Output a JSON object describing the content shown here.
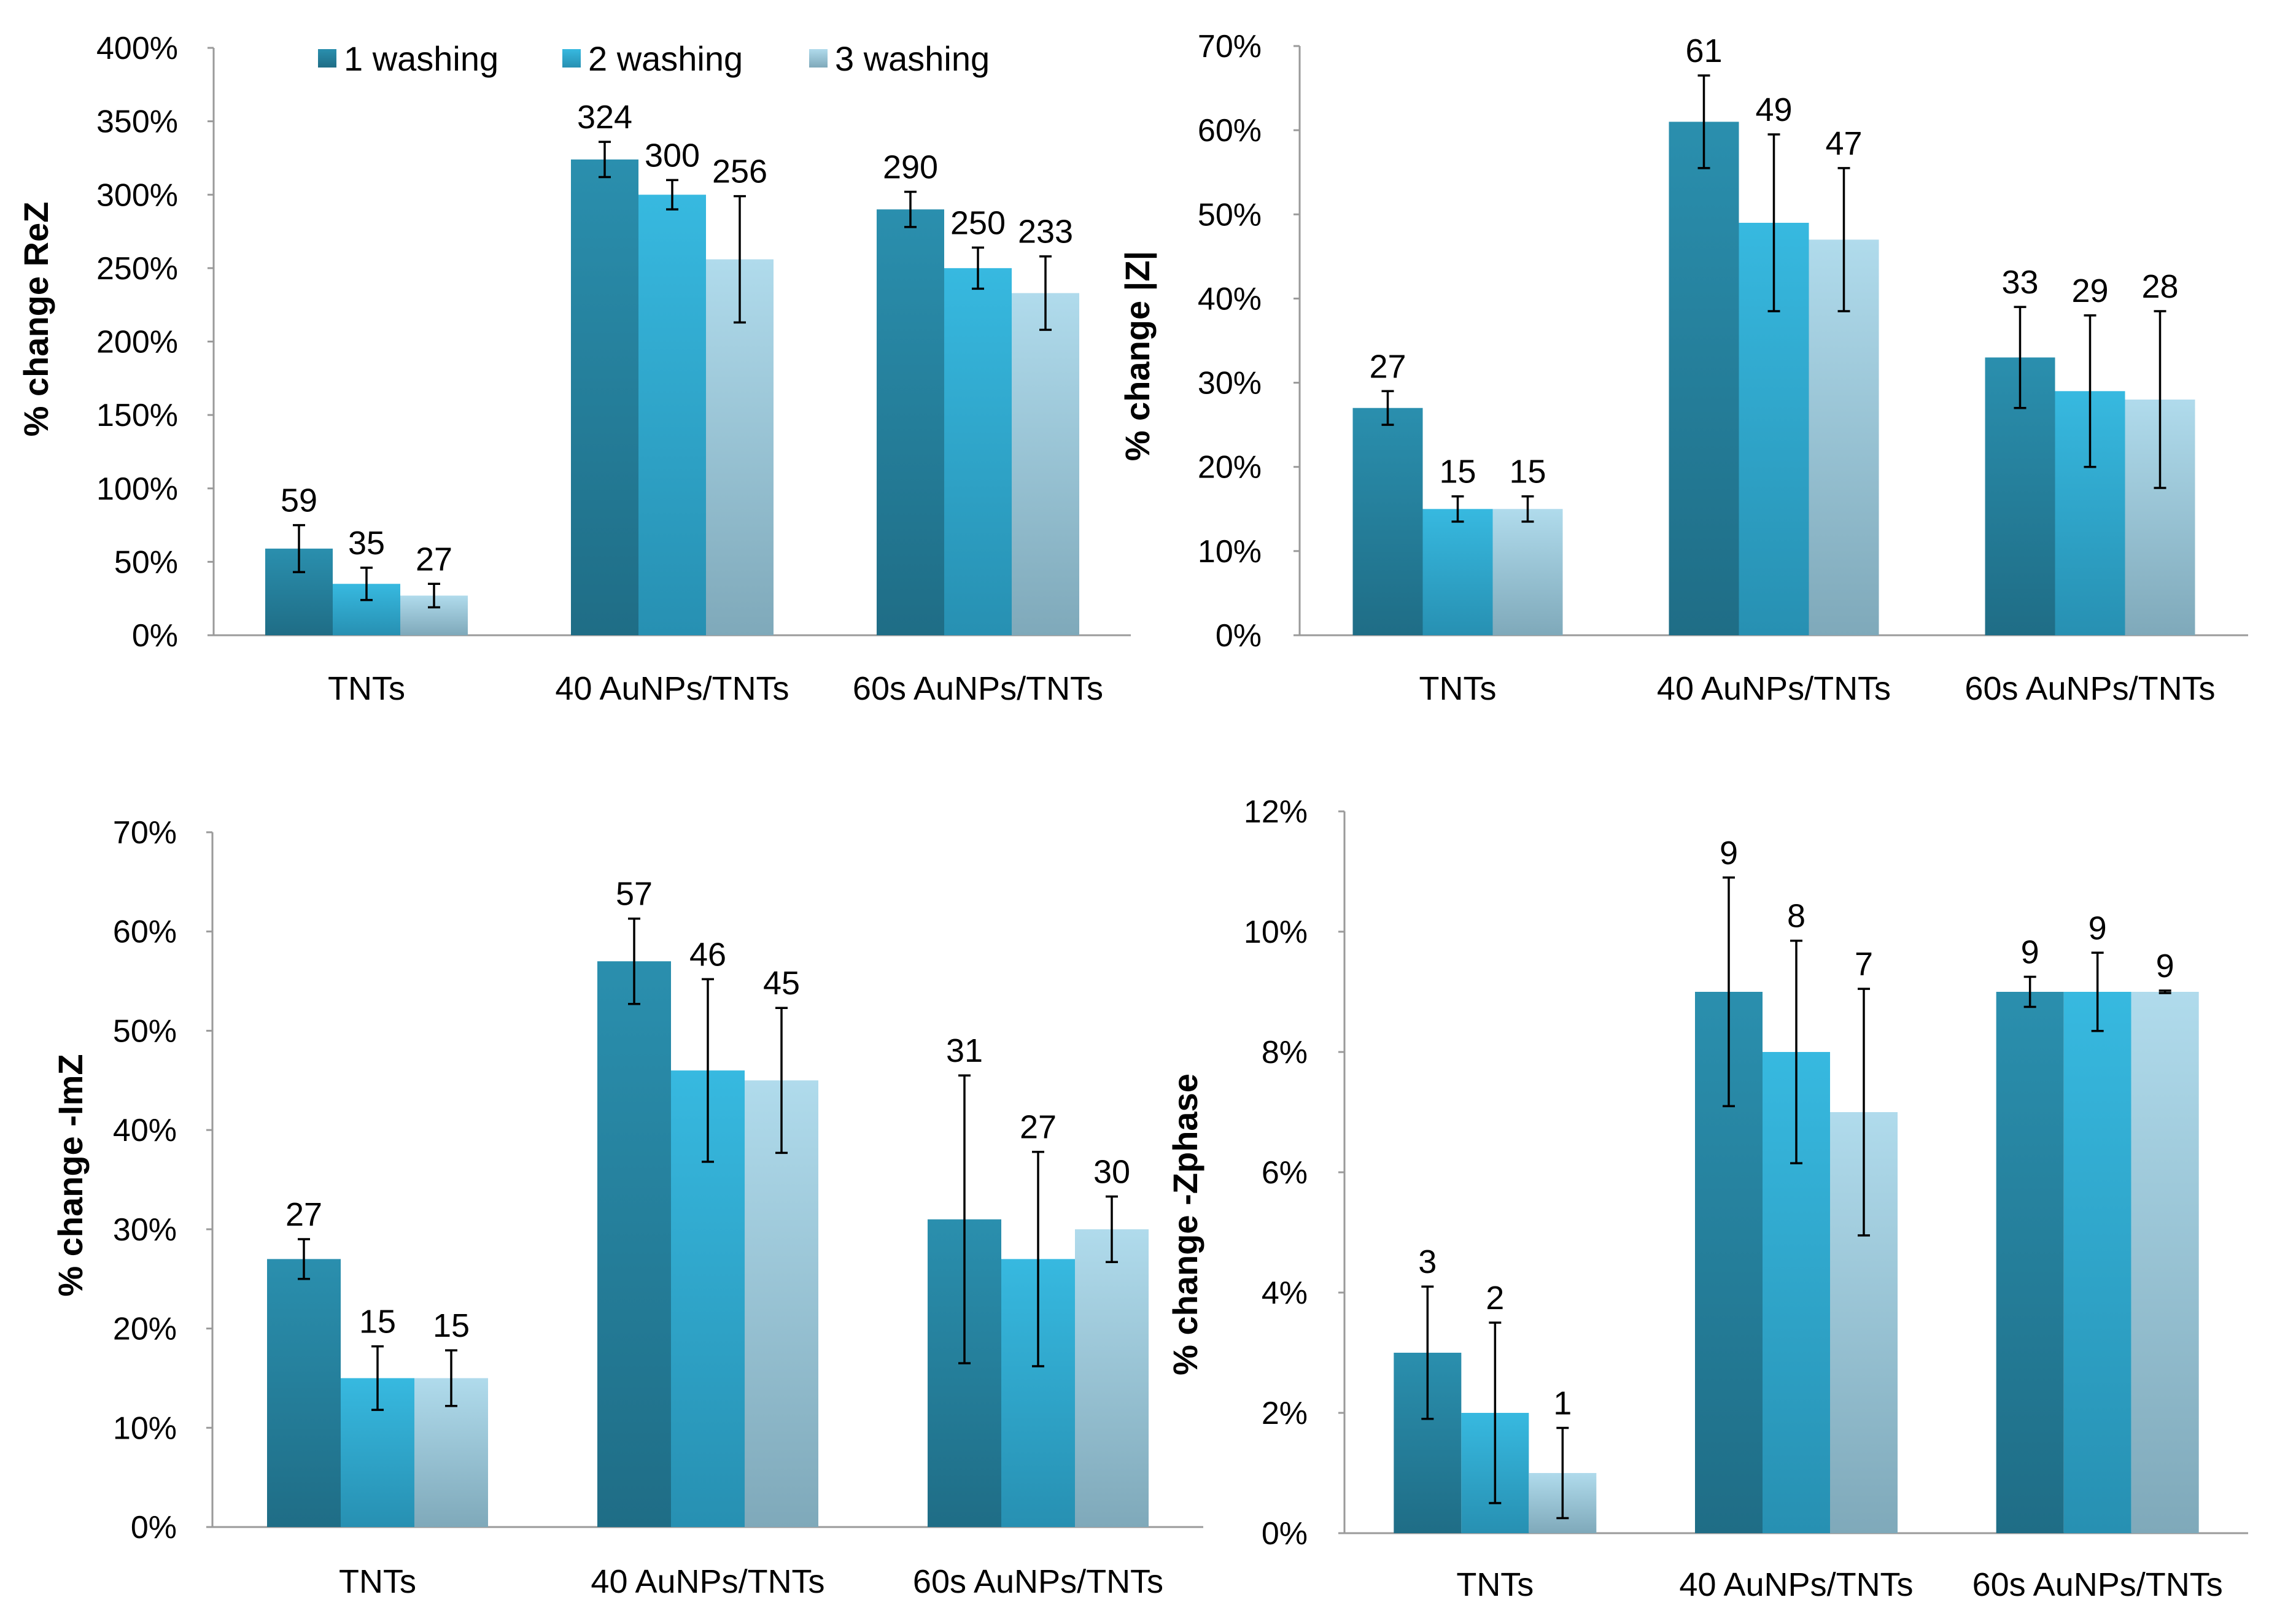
{
  "legend": {
    "items": [
      {
        "label": "1 washing",
        "color": "#2a8aa6"
      },
      {
        "label": "2 washing",
        "color": "#31b4dc"
      },
      {
        "label": "3 washing",
        "color": "#a5d3e6"
      }
    ]
  },
  "chart_data": [
    {
      "type": "bar",
      "title": "",
      "ylabel": "% change ReZ",
      "xlabel": "",
      "ylim": [
        0,
        400
      ],
      "yticks": [
        0,
        50,
        100,
        150,
        200,
        250,
        300,
        350,
        400
      ],
      "ytick_labels": [
        "0%",
        "50%",
        "100%",
        "150%",
        "200%",
        "250%",
        "300%",
        "350%",
        "400%"
      ],
      "categories": [
        "TNTs",
        "40 AuNPs/TNTs",
        "60s AuNPs/TNTs"
      ],
      "series": [
        {
          "name": "1 washing",
          "values": [
            59,
            324,
            290
          ],
          "errors": [
            16,
            12,
            12
          ],
          "labels": [
            "59",
            "324",
            "290"
          ]
        },
        {
          "name": "2 washing",
          "values": [
            35,
            300,
            250
          ],
          "errors": [
            11,
            10,
            14
          ],
          "labels": [
            "35",
            "300",
            "250"
          ]
        },
        {
          "name": "3 washing",
          "values": [
            27,
            256,
            233
          ],
          "errors": [
            8,
            43,
            25
          ],
          "labels": [
            "27",
            "256",
            "233"
          ]
        }
      ]
    },
    {
      "type": "bar",
      "title": "",
      "ylabel": "% change |Z|",
      "xlabel": "",
      "ylim": [
        0,
        70
      ],
      "yticks": [
        0,
        10,
        20,
        30,
        40,
        50,
        60,
        70
      ],
      "ytick_labels": [
        "0%",
        "10%",
        "20%",
        "30%",
        "40%",
        "50%",
        "60%",
        "70%"
      ],
      "categories": [
        "TNTs",
        "40 AuNPs/TNTs",
        "60s AuNPs/TNTs"
      ],
      "series": [
        {
          "name": "1 washing",
          "values": [
            27,
            61,
            33
          ],
          "errors": [
            2,
            5.5,
            6
          ],
          "labels": [
            "27",
            "61",
            "33"
          ]
        },
        {
          "name": "2 washing",
          "values": [
            15,
            49,
            29
          ],
          "errors": [
            1.5,
            10.5,
            9
          ],
          "labels": [
            "15",
            "49",
            "29"
          ]
        },
        {
          "name": "3 washing",
          "values": [
            15,
            47,
            28
          ],
          "errors": [
            1.5,
            8.5,
            10.5
          ],
          "labels": [
            "15",
            "47",
            "28"
          ]
        }
      ]
    },
    {
      "type": "bar",
      "title": "",
      "ylabel": "% change -ImZ",
      "xlabel": "",
      "ylim": [
        0,
        70
      ],
      "yticks": [
        0,
        10,
        20,
        30,
        40,
        50,
        60,
        70
      ],
      "ytick_labels": [
        "0%",
        "10%",
        "20%",
        "30%",
        "40%",
        "50%",
        "60%",
        "70%"
      ],
      "categories": [
        "TNTs",
        "40 AuNPs/TNTs",
        "60s AuNPs/TNTs"
      ],
      "series": [
        {
          "name": "1 washing",
          "values": [
            27,
            57,
            31
          ],
          "errors": [
            2,
            4.3,
            14.5
          ],
          "labels": [
            "27",
            "57",
            "31"
          ]
        },
        {
          "name": "2 washing",
          "values": [
            15,
            46,
            27
          ],
          "errors": [
            3.2,
            9.2,
            10.8
          ],
          "labels": [
            "15",
            "46",
            "27"
          ]
        },
        {
          "name": "3 washing",
          "values": [
            15,
            45,
            30
          ],
          "errors": [
            2.8,
            7.3,
            3.3
          ],
          "labels": [
            "15",
            "45",
            "30"
          ]
        }
      ]
    },
    {
      "type": "bar",
      "title": "",
      "ylabel": "% change -Zphase",
      "xlabel": "",
      "ylim": [
        0,
        12
      ],
      "yticks": [
        0,
        2,
        4,
        6,
        8,
        10,
        12
      ],
      "ytick_labels": [
        "0%",
        "2%",
        "4%",
        "6%",
        "8%",
        "10%",
        "12%"
      ],
      "categories": [
        "TNTs",
        "40 AuNPs/TNTs",
        "60s AuNPs/TNTs"
      ],
      "series": [
        {
          "name": "1 washing",
          "values": [
            3,
            9,
            9
          ],
          "errors": [
            1.1,
            1.9,
            0.25
          ],
          "labels": [
            "3",
            "9",
            "9"
          ]
        },
        {
          "name": "2 washing",
          "values": [
            2,
            8,
            9
          ],
          "errors": [
            1.5,
            1.85,
            0.65
          ],
          "labels": [
            "2",
            "8",
            "9"
          ]
        },
        {
          "name": "3 washing",
          "values": [
            1,
            7,
            9
          ],
          "errors": [
            0.75,
            2.05,
            0.02
          ],
          "labels": [
            "1",
            "7",
            "9"
          ]
        }
      ]
    }
  ]
}
